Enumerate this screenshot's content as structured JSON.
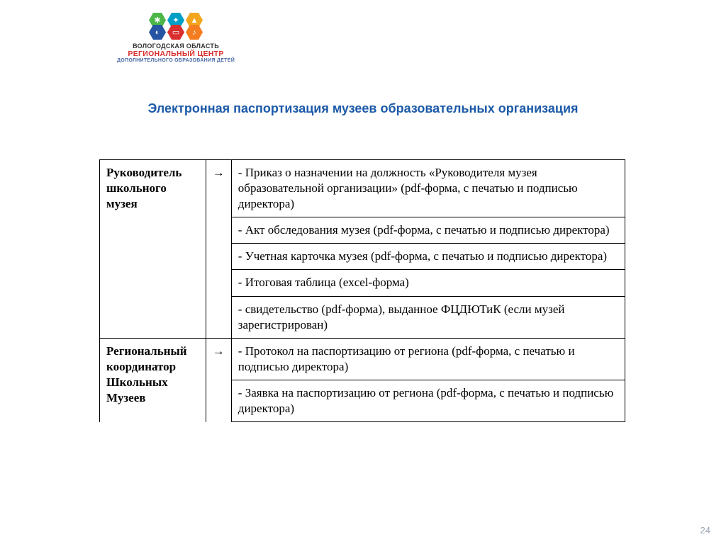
{
  "logo": {
    "hex_top": [
      {
        "color": "#4cb748",
        "glyph": "✱"
      },
      {
        "color": "#00a0c6",
        "glyph": "✦"
      },
      {
        "color": "#f2a61d",
        "glyph": "▲"
      }
    ],
    "hex_bottom": [
      {
        "color": "#2554a2",
        "glyph": "◐"
      },
      {
        "color": "#d92f2f",
        "glyph": "▭"
      },
      {
        "color": "#f47d20",
        "glyph": "♪"
      }
    ],
    "line1": "ВОЛОГОДСКАЯ ОБЛАСТЬ",
    "line2": "РЕГИОНАЛЬНЫЙ ЦЕНТР",
    "line3": "ДОПОЛНИТЕЛЬНОГО ОБРАЗОВАНИЯ ДЕТЕЙ"
  },
  "title": "Электронная паспортизация  музеев  образовательных организация",
  "arrow": "→",
  "roles": [
    {
      "name": "Руководитель школьного музея",
      "docs": [
        "- Приказ о назначении на должность «Руководителя  музея образовательной организации» (pdf-форма, с печатью и подписью директора)",
        "- Акт обследования музея (pdf-форма, с печатью и подписью директора)",
        "- Учетная карточка музея (pdf-форма, с печатью и подписью директора)",
        "-    Итоговая таблица (excel-форма)",
        "- свидетельство (pdf-форма), выданное ФЦДЮТиК (если музей зарегистрирован)"
      ]
    },
    {
      "name": "Региональный координатор Школьных Музеев",
      "docs": [
        "- Протокол на паспортизацию от региона (pdf-форма, с печатью и подписью директора)",
        "- Заявка на паспортизацию от региона  (pdf-форма, с печатью и подписью директора)"
      ]
    }
  ],
  "slide_number": "24"
}
